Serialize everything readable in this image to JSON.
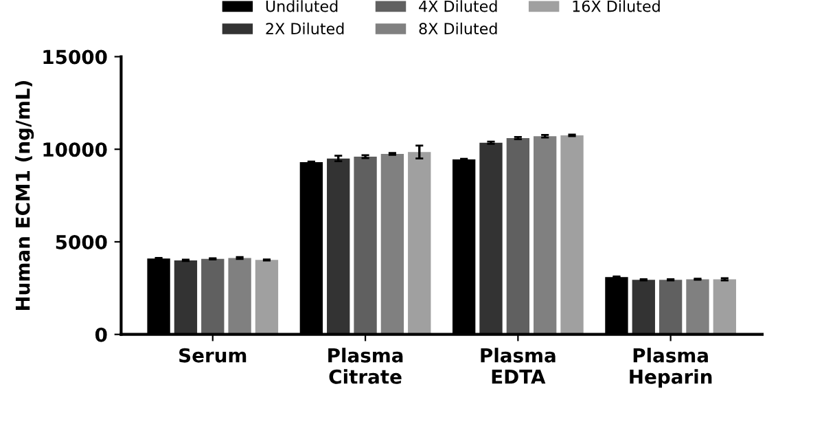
{
  "chart_data": {
    "type": "bar",
    "ylabel": "Human ECM1 (ng/mL)",
    "categories": [
      "Serum",
      "Plasma\nCitrate",
      "Plasma\nEDTA",
      "Plasma\nHeparin"
    ],
    "series": [
      {
        "name": "Undiluted",
        "color": "#000000",
        "values": [
          4100,
          9300,
          9450,
          3100
        ],
        "errors": [
          30,
          30,
          30,
          30
        ]
      },
      {
        "name": "2X Diluted",
        "color": "#333333",
        "values": [
          4000,
          9500,
          10350,
          2950
        ],
        "errors": [
          40,
          150,
          60,
          30
        ]
      },
      {
        "name": "4X Diluted",
        "color": "#606060",
        "values": [
          4080,
          9600,
          10600,
          2950
        ],
        "errors": [
          30,
          80,
          60,
          30
        ]
      },
      {
        "name": "8X Diluted",
        "color": "#808080",
        "values": [
          4130,
          9750,
          10700,
          2980
        ],
        "errors": [
          50,
          50,
          70,
          30
        ]
      },
      {
        "name": "16X Diluted",
        "color": "#a0a0a0",
        "values": [
          4020,
          9850,
          10750,
          2980
        ],
        "errors": [
          30,
          350,
          40,
          60
        ]
      }
    ],
    "ylim": [
      0,
      15000
    ],
    "yticks": [
      0,
      5000,
      10000,
      15000
    ],
    "grid": false,
    "legend": "top"
  }
}
